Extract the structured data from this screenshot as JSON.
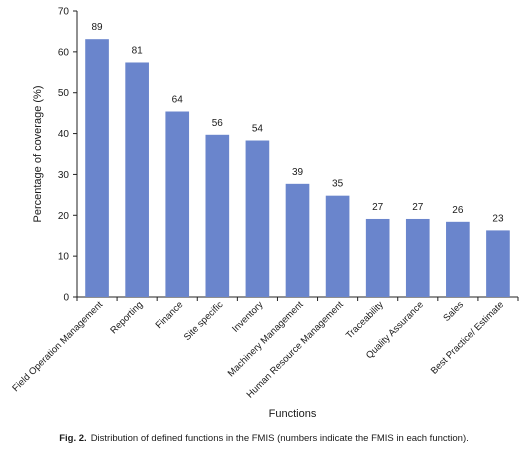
{
  "chart_data": {
    "type": "bar",
    "title": "",
    "xlabel": "Functions",
    "ylabel": "Percentage of coverage (%)",
    "ylim": [
      0,
      70
    ],
    "yticks": [
      0,
      10,
      20,
      30,
      40,
      50,
      60,
      70
    ],
    "grid": false,
    "bar_color": "#6a85cc",
    "categories": [
      "Field Operation Management",
      "Reporting",
      "Finance",
      "Site specific",
      "Inventory",
      "Machinery Management",
      "Human Resource Management",
      "Traceability",
      "Quality Assurance",
      "Sales",
      "Best Practice/ Estimate"
    ],
    "values": [
      63.1,
      57.4,
      45.4,
      39.7,
      38.3,
      27.7,
      24.8,
      19.1,
      19.1,
      18.4,
      16.3
    ],
    "data_labels": [
      "89",
      "81",
      "64",
      "56",
      "54",
      "39",
      "35",
      "27",
      "27",
      "26",
      "23"
    ]
  },
  "caption": {
    "label": "Fig. 2.",
    "text": "Distribution of defined functions in the FMIS (numbers indicate the FMIS in each function)."
  }
}
